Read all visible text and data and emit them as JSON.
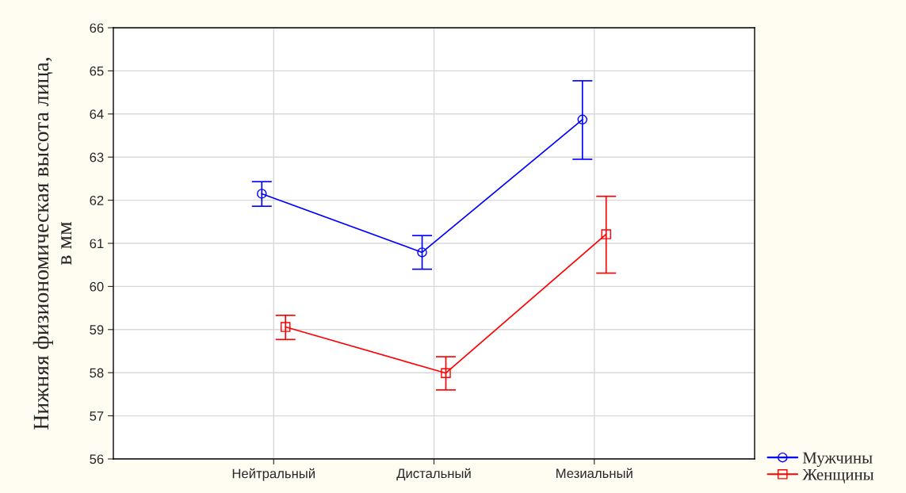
{
  "chart_data": {
    "type": "line",
    "ylabel": "Нижняя физиономическая высота лица,\nв мм",
    "categories": [
      "Нейтральный",
      "Дистальный",
      "Мезиальный"
    ],
    "series": [
      {
        "name": "Мужчины",
        "color": "#0000ff",
        "marker": "circle",
        "values": [
          62.15,
          60.79,
          63.87
        ],
        "errors": [
          [
            61.86,
            62.43
          ],
          [
            60.4,
            61.18
          ],
          [
            62.95,
            64.77
          ]
        ]
      },
      {
        "name": "Женщины",
        "color": "#ff0000",
        "marker": "square",
        "values": [
          59.06,
          57.99,
          61.21
        ],
        "errors": [
          [
            58.77,
            59.33
          ],
          [
            57.6,
            58.37
          ],
          [
            60.31,
            62.09
          ]
        ]
      }
    ],
    "ylim": [
      56,
      66
    ],
    "yticks": [
      56,
      57,
      58,
      59,
      60,
      61,
      62,
      63,
      64,
      65,
      66
    ],
    "grid": true,
    "legend": "bottom right",
    "line_style": "solid"
  }
}
